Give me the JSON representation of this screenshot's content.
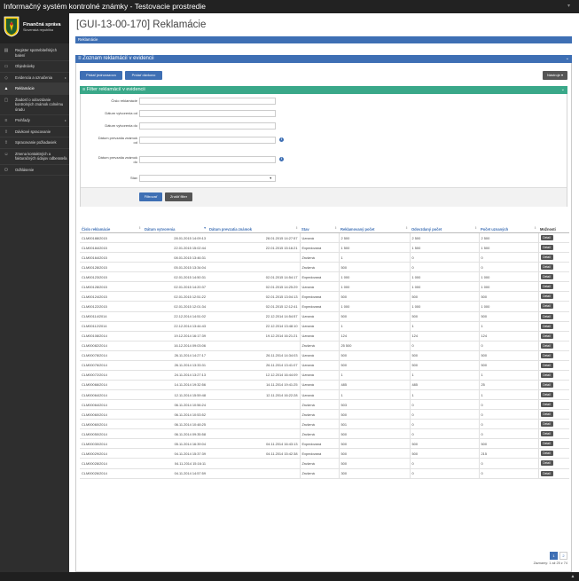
{
  "app": {
    "title": "Informačný systém kontrolné známky - Testovacie prostredie"
  },
  "logo": {
    "line1": "Finančná správa",
    "line2": "Slovenská republika"
  },
  "sidebar": {
    "items": [
      {
        "label": "Register spotrebiteľských balení",
        "icon": "box-icon"
      },
      {
        "label": "Objednávky",
        "icon": "cart-icon"
      },
      {
        "label": "Evidencia a označenia",
        "icon": "tag-icon",
        "arrow": "▸"
      },
      {
        "label": "Reklamácie",
        "icon": "warning-icon"
      },
      {
        "label": "Žiadosť o odovzdanie kontrolných známok colnému úradu",
        "icon": "document-icon"
      },
      {
        "label": "Prehľady",
        "icon": "list-icon",
        "arrow": "▸"
      },
      {
        "label": "Dávkové spracovanie",
        "icon": "upload-icon"
      },
      {
        "label": "Spracovanie požiadaviek",
        "icon": "upload-icon"
      },
      {
        "label": "Zmena kontaktných a fakturačných údajov odberateľa",
        "icon": "user-icon"
      },
      {
        "label": "Odhlásenie",
        "icon": "logout-icon"
      }
    ]
  },
  "page": {
    "title": "[GUI-13-00-170] Reklamácie",
    "breadcrumb": "Reklamácie"
  },
  "panel": {
    "title": "≡ Zoznam reklamácií v evidencii",
    "btn_single": "Pridať jednorazovo",
    "btn_batch": "Pridať dávkovo",
    "btn_tools": "Nástroje ▾"
  },
  "filter": {
    "title": "≡ Filter reklamácií v evidencii",
    "fields": {
      "cislo": "Číslo reklamácie",
      "vytvor_od": "Dátum vytvorenia od",
      "vytvor_do": "Dátum vytvorenia do",
      "prevz_od_1": "Dátum prevzatia známok",
      "prevz_od_2": "od",
      "prevz_do_1": "Dátum prevzatia známok",
      "prevz_do_2": "do",
      "stav": "Stav"
    },
    "btn_filter": "Filtrovať",
    "btn_cancel": "Zrušiť filter"
  },
  "table": {
    "headers": [
      "Číslo reklamácie",
      "Dátum vytvorenia",
      "Dátum prevzatia známok",
      "Stav",
      "Reklamovaný počet",
      "Odovzdaný počet",
      "Počet uznaných",
      "Možnosti"
    ],
    "detail_label": "Detail",
    "rows": [
      [
        "CLM00188/2015",
        "28.01.2015 14:09:13",
        "28.01.2015 14:27:57",
        "Uznaná",
        "2 500",
        "2 500",
        "2 500"
      ],
      [
        "CLM00184/2015",
        "22.01.2015 15:02:44",
        "22.01.2015 15:16:21",
        "Expedovaná",
        "1 500",
        "1 500",
        "1 500"
      ],
      [
        "CLM00164/2015",
        "08.01.2015 13:46:31",
        "",
        "Zrušená",
        "1",
        "0",
        "0"
      ],
      [
        "CLM00128/2015",
        "05.01.2015 13:34:04",
        "",
        "Zrušená",
        "500",
        "0",
        "0"
      ],
      [
        "CLM00123/2015",
        "02.01.2015 14:50:31",
        "02.01.2015 14:54:17",
        "Expedovaná",
        "1 000",
        "1 000",
        "1 000"
      ],
      [
        "CLM00128/2015",
        "02.01.2015 14:20:37",
        "02.01.2015 14:25:29",
        "Uznaná",
        "1 000",
        "1 000",
        "1 000"
      ],
      [
        "CLM00124/2015",
        "02.01.2015 12:51:22",
        "02.01.2015 13:04:13",
        "Expedovaná",
        "500",
        "500",
        "500"
      ],
      [
        "CLM00122/2015",
        "02.01.2015 12:01:34",
        "02.01.2015 12:12:41",
        "Expedovaná",
        "1 000",
        "1 000",
        "1 000"
      ],
      [
        "CLM00114/2014",
        "22.12.2014 14:51:02",
        "22.12.2014 14:54:57",
        "Uznaná",
        "500",
        "500",
        "500"
      ],
      [
        "CLM00112/2014",
        "22.12.2014 13:44:43",
        "22.12.2014 13:48:10",
        "Uznaná",
        "1",
        "1",
        "1"
      ],
      [
        "CLM00108/2014",
        "19.12.2014 16:17:39",
        "19.12.2014 16:21:21",
        "Uznaná",
        "124",
        "124",
        "124"
      ],
      [
        "CLM00082/2014",
        "16.12.2014 09:03:06",
        "",
        "Zrušená",
        "25 500",
        "0",
        "0"
      ],
      [
        "CLM00078/2014",
        "26.11.2014 14:27:17",
        "26.11.2014 14:34:03",
        "Uznaná",
        "500",
        "500",
        "500"
      ],
      [
        "CLM00076/2014",
        "26.11.2014 13:33:31",
        "26.11.2014 13:41:07",
        "Uznaná",
        "500",
        "500",
        "500"
      ],
      [
        "CLM00072/2014",
        "24.11.2014 13:27:13",
        "12.12.2014 16:44:09",
        "Uznaná",
        "1",
        "1",
        "1"
      ],
      [
        "CLM00066/2014",
        "14.11.2014 19:32:56",
        "14.11.2014 19:41:25",
        "Uznaná",
        "485",
        "485",
        "25"
      ],
      [
        "CLM00064/2014",
        "12.11.2014 15:59:48",
        "12.11.2014 16:22:28",
        "Uznaná",
        "1",
        "1",
        "1"
      ],
      [
        "CLM00064/2014",
        "06.11.2014 10:56:24",
        "",
        "Zrušená",
        "503",
        "0",
        "0"
      ],
      [
        "CLM00060/2014",
        "06.11.2014 10:53:52",
        "",
        "Zrušená",
        "500",
        "0",
        "0"
      ],
      [
        "CLM00060/2014",
        "06.11.2014 10:48:25",
        "",
        "Zrušená",
        "501",
        "0",
        "0"
      ],
      [
        "CLM00050/2014",
        "06.11.2014 09:35:58",
        "",
        "Zrušená",
        "500",
        "0",
        "0"
      ],
      [
        "CLM00030/2014",
        "05.11.2014 16:39:04",
        "04.11.2014 16:43:13",
        "Expedovaná",
        "500",
        "500",
        "500"
      ],
      [
        "CLM00029/2014",
        "04.11.2014 15:37:39",
        "04.11.2014 15:42:38",
        "Expedovaná",
        "500",
        "500",
        "215"
      ],
      [
        "CLM00028/2014",
        "04.11.2014 15:16:11",
        "",
        "Zrušená",
        "500",
        "0",
        "0"
      ],
      [
        "CLM00026/2014",
        "04.11.2014 14:57:59",
        "",
        "Zrušená",
        "300",
        "0",
        "0"
      ]
    ]
  },
  "pagination": {
    "pages": [
      "1",
      "2"
    ],
    "info": "Záznamy: 1 až 25 z 74"
  },
  "colors": {
    "primary": "#3e6fb4",
    "filter": "#3aa889",
    "sidebar": "#2e2e2e",
    "topbar": "#222222"
  }
}
